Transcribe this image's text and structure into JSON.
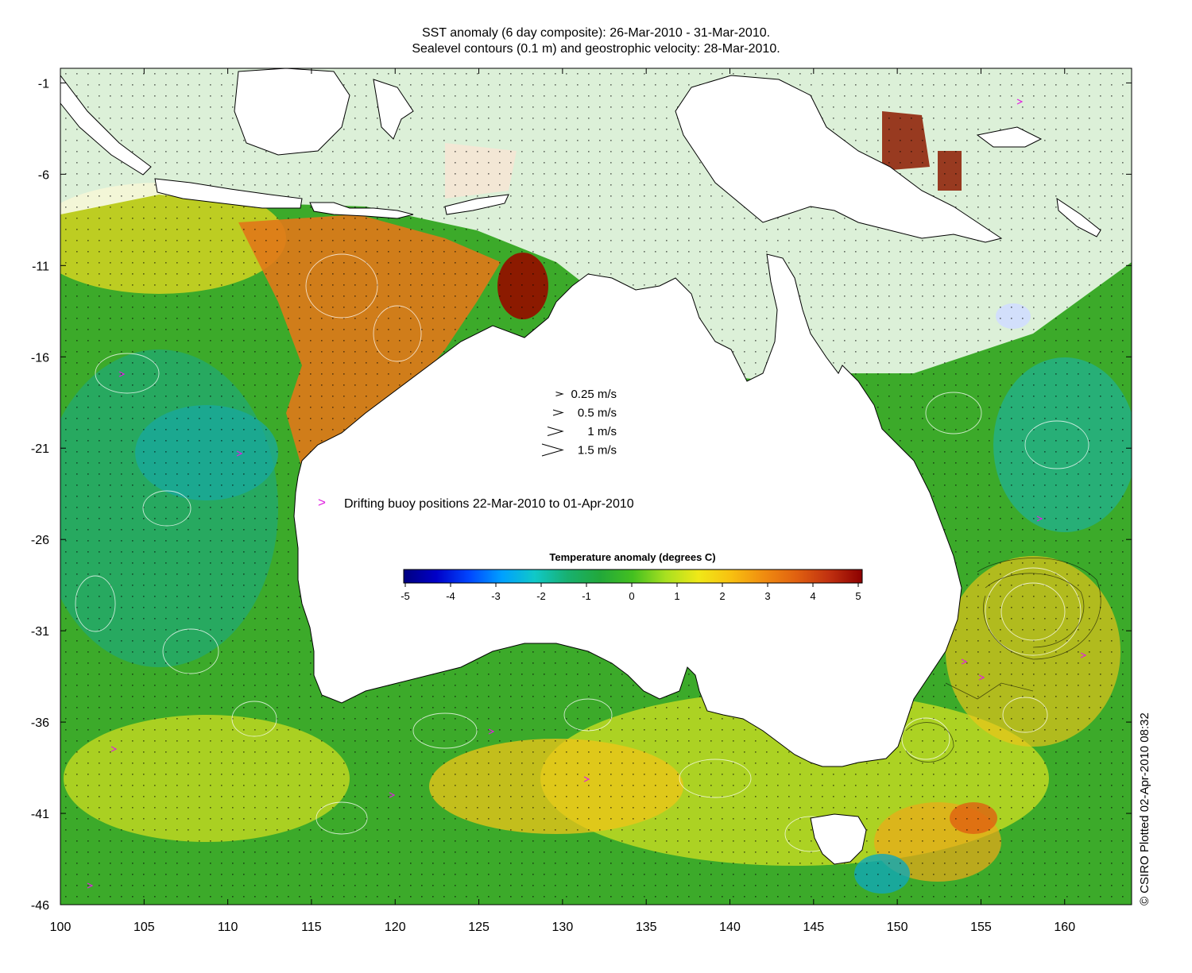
{
  "title": {
    "line1": "SST anomaly (6 day composite): 26-Mar-2010 - 31-Mar-2010.",
    "line2": "Sealevel contours (0.1 m) and geostrophic velocity: 28-Mar-2010."
  },
  "axes": {
    "x_ticks": [
      "100",
      "105",
      "110",
      "115",
      "120",
      "125",
      "130",
      "135",
      "140",
      "145",
      "150",
      "155",
      "160"
    ],
    "y_ticks": [
      "-1",
      "-6",
      "-11",
      "-16",
      "-21",
      "-26",
      "-31",
      "-36",
      "-41",
      "-46"
    ],
    "x_range": [
      100,
      164
    ],
    "y_range": [
      -46,
      -0.2
    ]
  },
  "velocity_legend": [
    {
      "speed": 0.25,
      "label": "0.25 m/s"
    },
    {
      "speed": 0.5,
      "label": "0.5 m/s"
    },
    {
      "speed": 1,
      "label": "1 m/s"
    },
    {
      "speed": 1.5,
      "label": "1.5 m/s"
    }
  ],
  "buoy_legend": {
    "symbol": ">",
    "label": "Drifting buoy positions 22-Mar-2010 to 01-Apr-2010",
    "color": "#e020e0"
  },
  "colorbar": {
    "title": "Temperature anomaly (degrees C)",
    "min": -5,
    "max": 5,
    "ticks": [
      "-5",
      "-4",
      "-3",
      "-2",
      "-1",
      "0",
      "1",
      "2",
      "3",
      "4",
      "5"
    ],
    "colors": [
      "#00007f",
      "#0000c8",
      "#0046ff",
      "#00a0ff",
      "#10c8c8",
      "#18b070",
      "#22a83a",
      "#44c020",
      "#a8e020",
      "#f0e818",
      "#f8c010",
      "#f08c10",
      "#e06010",
      "#c03010",
      "#8c0000"
    ]
  },
  "credit": "© CSIRO Plotted 02-Apr-2010 08:32",
  "colors": {
    "land": "#ffffff",
    "coast": "#000000",
    "contour": "#ffffff",
    "vector": "#000000"
  }
}
